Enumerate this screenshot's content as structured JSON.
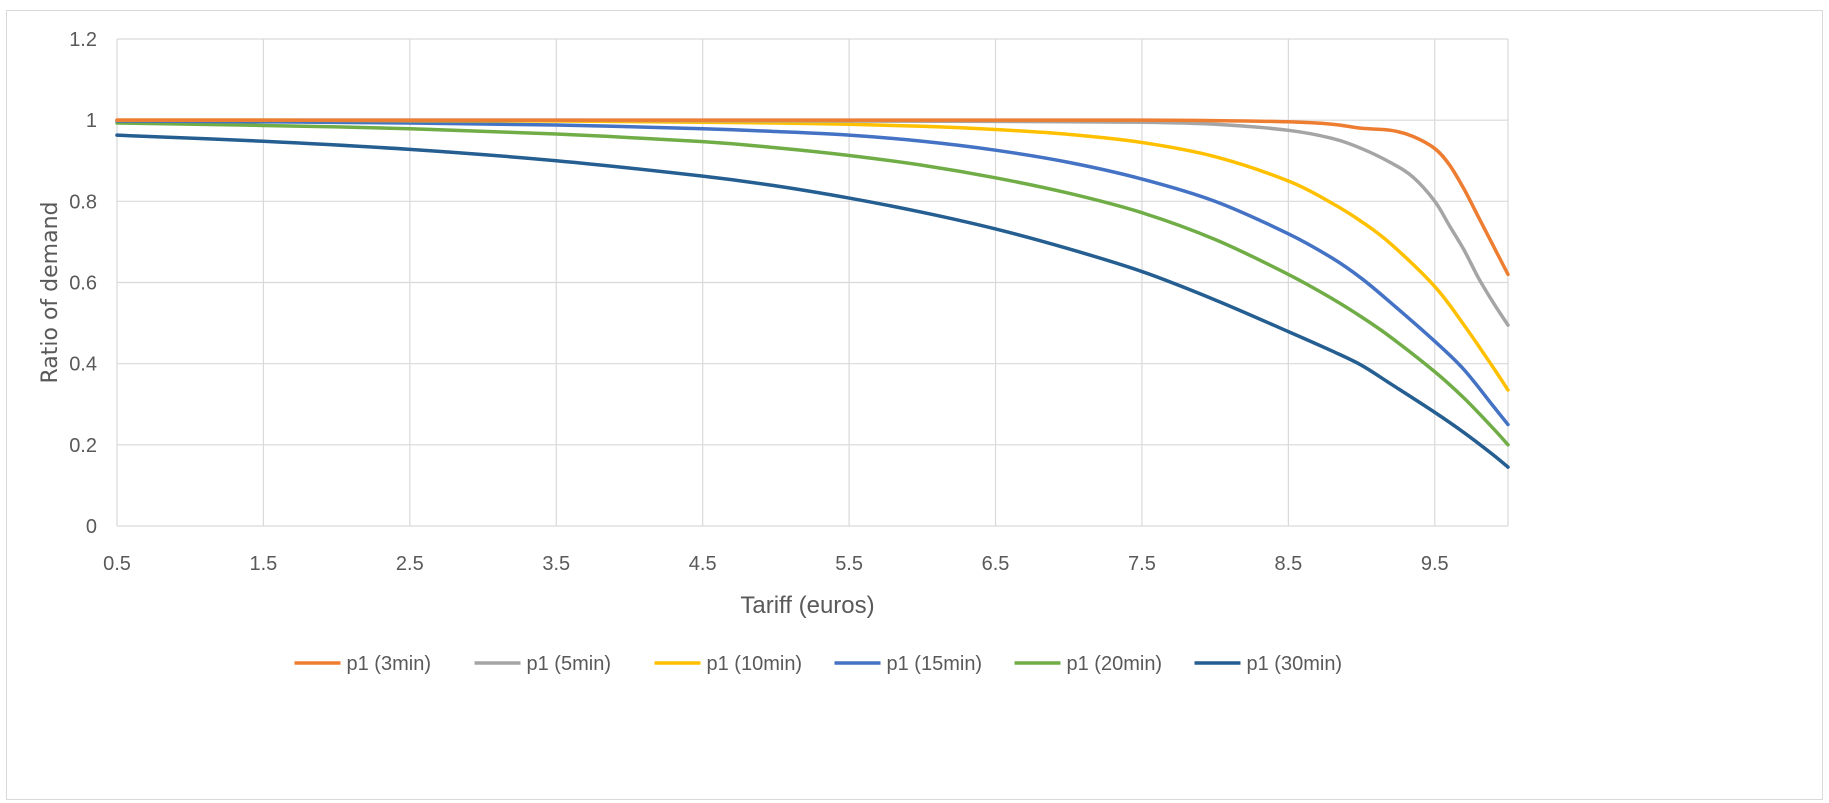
{
  "chart_data": {
    "type": "line",
    "xlabel": "Tariff (euros)",
    "ylabel": "Ratio of demand",
    "xlim": [
      0.5,
      10
    ],
    "ylim": [
      0,
      1.2
    ],
    "x_ticks": [
      0.5,
      1.5,
      2.5,
      3.5,
      4.5,
      5.5,
      6.5,
      7.5,
      8.5,
      9.5
    ],
    "x_tick_labels": [
      "0.5",
      "1.5",
      "2.5",
      "3.5",
      "4.5",
      "5.5",
      "6.5",
      "7.5",
      "8.5",
      "9.5"
    ],
    "y_ticks": [
      0,
      0.2,
      0.4,
      0.6,
      0.8,
      1,
      1.2
    ],
    "y_tick_labels": [
      "0",
      "0.2",
      "0.4",
      "0.6",
      "0.8",
      "1",
      "1.2"
    ],
    "grid": true,
    "legend_position": "bottom",
    "series": [
      {
        "name": "p1 (3min)",
        "color": "#ed7d31",
        "x": [
          0.5,
          1.5,
          2.5,
          3.5,
          4.5,
          5.5,
          6.5,
          7.5,
          8.0,
          8.5,
          8.8,
          9.0,
          9.2,
          9.35,
          9.5,
          9.6,
          9.7,
          9.8,
          9.9,
          10.0
        ],
        "y": [
          1.0,
          1.0,
          1.0,
          1.0,
          1.0,
          1.0,
          1.0,
          1.0,
          0.999,
          0.996,
          0.99,
          0.98,
          0.975,
          0.96,
          0.93,
          0.89,
          0.83,
          0.76,
          0.69,
          0.62
        ]
      },
      {
        "name": "p1 (5min)",
        "color": "#a5a5a5",
        "x": [
          0.5,
          1.5,
          2.5,
          3.5,
          4.5,
          5.5,
          6.5,
          7.5,
          8.0,
          8.5,
          8.8,
          9.0,
          9.2,
          9.35,
          9.5,
          9.6,
          9.7,
          9.8,
          9.9,
          10.0
        ],
        "y": [
          1.0,
          1.0,
          1.0,
          1.0,
          0.999,
          0.998,
          0.997,
          0.995,
          0.99,
          0.975,
          0.955,
          0.93,
          0.895,
          0.86,
          0.8,
          0.74,
          0.68,
          0.61,
          0.55,
          0.495
        ]
      },
      {
        "name": "p1 (10min)",
        "color": "#ffc000",
        "x": [
          0.5,
          1.5,
          2.5,
          3.5,
          4.5,
          5.0,
          5.5,
          6.0,
          6.5,
          7.0,
          7.5,
          8.0,
          8.5,
          8.8,
          9.0,
          9.2,
          9.5,
          9.7,
          9.9,
          10.0
        ],
        "y": [
          1.0,
          1.0,
          0.999,
          0.998,
          0.995,
          0.993,
          0.99,
          0.985,
          0.977,
          0.965,
          0.945,
          0.91,
          0.85,
          0.795,
          0.75,
          0.695,
          0.59,
          0.495,
          0.39,
          0.335
        ]
      },
      {
        "name": "p1 (15min)",
        "color": "#4472c4",
        "x": [
          0.5,
          1.5,
          2.5,
          3.5,
          4.5,
          5.0,
          5.5,
          6.0,
          6.5,
          7.0,
          7.5,
          8.0,
          8.5,
          8.8,
          9.0,
          9.2,
          9.5,
          9.7,
          9.9,
          10.0
        ],
        "y": [
          0.998,
          0.996,
          0.993,
          0.988,
          0.979,
          0.972,
          0.963,
          0.948,
          0.926,
          0.896,
          0.855,
          0.8,
          0.72,
          0.66,
          0.61,
          0.55,
          0.455,
          0.385,
          0.295,
          0.25
        ]
      },
      {
        "name": "p1 (20min)",
        "color": "#70ad47",
        "x": [
          0.5,
          1.5,
          2.5,
          3.5,
          4.5,
          5.0,
          5.5,
          6.0,
          6.5,
          7.0,
          7.5,
          8.0,
          8.5,
          8.8,
          9.0,
          9.2,
          9.5,
          9.7,
          9.9,
          10.0
        ],
        "y": [
          0.993,
          0.987,
          0.979,
          0.966,
          0.947,
          0.932,
          0.913,
          0.889,
          0.858,
          0.82,
          0.772,
          0.706,
          0.62,
          0.56,
          0.515,
          0.465,
          0.38,
          0.315,
          0.24,
          0.2
        ]
      },
      {
        "name": "p1 (30min)",
        "color": "#255e91",
        "x": [
          0.5,
          1.5,
          2.5,
          3.5,
          4.5,
          5.0,
          5.5,
          6.0,
          6.5,
          7.0,
          7.5,
          8.0,
          8.5,
          8.8,
          9.0,
          9.2,
          9.5,
          9.7,
          9.9,
          10.0
        ],
        "y": [
          0.963,
          0.948,
          0.928,
          0.9,
          0.862,
          0.838,
          0.808,
          0.773,
          0.732,
          0.683,
          0.627,
          0.557,
          0.479,
          0.431,
          0.396,
          0.35,
          0.28,
          0.23,
          0.175,
          0.145
        ]
      }
    ]
  }
}
